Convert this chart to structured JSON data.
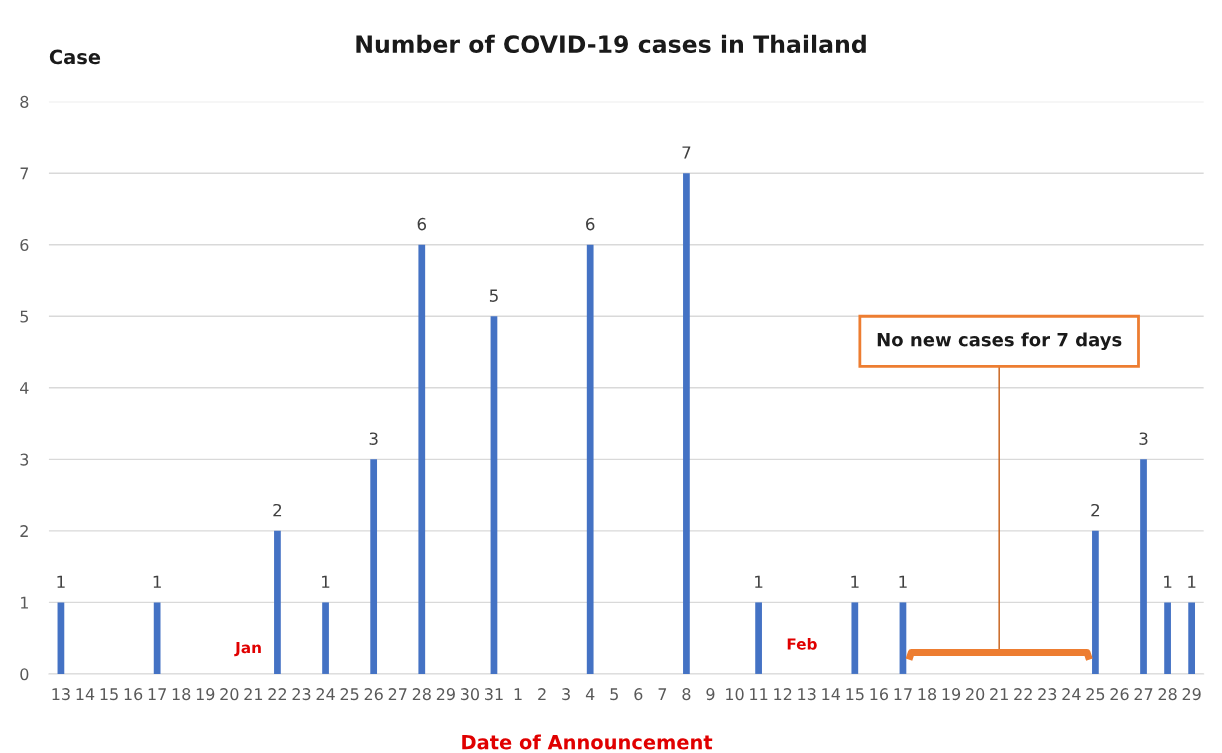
{
  "chart_data": {
    "type": "bar",
    "title": "Number of COVID-19 cases in Thailand",
    "xlabel": "Date of Announcement",
    "ylabel": "Case",
    "categories": [
      "13",
      "14",
      "15",
      "16",
      "17",
      "18",
      "19",
      "20",
      "21",
      "22",
      "23",
      "24",
      "25",
      "26",
      "27",
      "28",
      "29",
      "30",
      "31",
      "1",
      "2",
      "3",
      "4",
      "5",
      "6",
      "7",
      "8",
      "9",
      "10",
      "11",
      "12",
      "13",
      "14",
      "15",
      "16",
      "17",
      "18",
      "19",
      "20",
      "21",
      "22",
      "23",
      "24",
      "25",
      "26",
      "27",
      "28",
      "29"
    ],
    "values": [
      1,
      0,
      0,
      0,
      1,
      0,
      0,
      0,
      0,
      2,
      0,
      1,
      0,
      3,
      0,
      6,
      0,
      0,
      5,
      0,
      0,
      0,
      6,
      0,
      0,
      0,
      7,
      0,
      0,
      1,
      0,
      0,
      0,
      1,
      0,
      1,
      0,
      0,
      0,
      0,
      0,
      0,
      0,
      2,
      0,
      3,
      1,
      1
    ],
    "value_labels": [
      "1",
      null,
      null,
      null,
      "1",
      null,
      null,
      null,
      null,
      "2",
      null,
      "1",
      null,
      "3",
      null,
      "6",
      null,
      null,
      "5",
      null,
      null,
      null,
      "6",
      null,
      null,
      null,
      "7",
      null,
      null,
      "1",
      null,
      null,
      null,
      "1",
      null,
      "1",
      null,
      null,
      null,
      null,
      null,
      null,
      null,
      "2",
      null,
      "3",
      "1",
      "1"
    ],
    "color": "#4472c4",
    "ylim": [
      0,
      8
    ],
    "yticks": [
      0,
      1,
      2,
      3,
      4,
      5,
      6,
      7,
      8
    ],
    "grid": "y",
    "annotations": [
      "Jan",
      "Feb",
      "No new cases for 7 days"
    ]
  }
}
